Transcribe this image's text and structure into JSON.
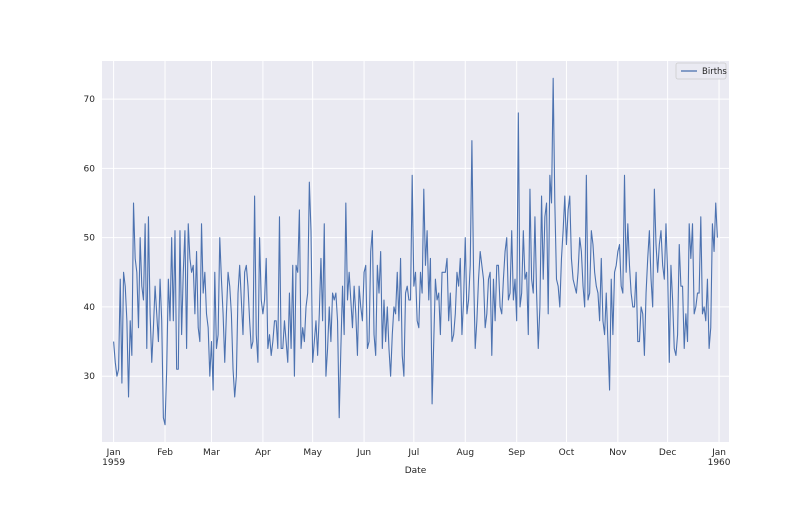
{
  "chart_data": {
    "type": "line",
    "xlabel": "Date",
    "ylabel": "",
    "ylim": [
      20.5,
      75.5
    ],
    "xlim": [
      "1958-12-25",
      "1960-01-07"
    ],
    "grid": true,
    "legend_position": "top-right",
    "yticks": [
      30,
      40,
      50,
      60,
      70
    ],
    "xticks": [
      {
        "date": "1959-01-01",
        "label": "Jan",
        "sublabel": "1959"
      },
      {
        "date": "1959-02-01",
        "label": "Feb",
        "sublabel": ""
      },
      {
        "date": "1959-03-01",
        "label": "Mar",
        "sublabel": ""
      },
      {
        "date": "1959-04-01",
        "label": "Apr",
        "sublabel": ""
      },
      {
        "date": "1959-05-01",
        "label": "May",
        "sublabel": ""
      },
      {
        "date": "1959-06-01",
        "label": "Jun",
        "sublabel": ""
      },
      {
        "date": "1959-07-01",
        "label": "Jul",
        "sublabel": ""
      },
      {
        "date": "1959-08-01",
        "label": "Aug",
        "sublabel": ""
      },
      {
        "date": "1959-09-01",
        "label": "Sep",
        "sublabel": ""
      },
      {
        "date": "1959-10-01",
        "label": "Oct",
        "sublabel": ""
      },
      {
        "date": "1959-11-01",
        "label": "Nov",
        "sublabel": ""
      },
      {
        "date": "1959-12-01",
        "label": "Dec",
        "sublabel": ""
      },
      {
        "date": "1960-01-01",
        "label": "Jan",
        "sublabel": "1960"
      }
    ],
    "series": [
      {
        "name": "Births",
        "color": "#4c72b0",
        "start_date": "1959-01-01",
        "frequency": "daily",
        "values": [
          35,
          32,
          30,
          31,
          44,
          29,
          45,
          43,
          38,
          27,
          38,
          33,
          55,
          47,
          45,
          37,
          50,
          43,
          41,
          52,
          34,
          53,
          39,
          32,
          37,
          43,
          39,
          35,
          44,
          38,
          24,
          23,
          31,
          44,
          38,
          50,
          38,
          51,
          31,
          31,
          51,
          36,
          45,
          51,
          34,
          52,
          47,
          45,
          46,
          39,
          48,
          37,
          35,
          52,
          42,
          45,
          39,
          37,
          30,
          35,
          28,
          45,
          34,
          36,
          50,
          44,
          39,
          32,
          39,
          45,
          43,
          39,
          31,
          27,
          30,
          42,
          46,
          41,
          36,
          45,
          46,
          43,
          38,
          34,
          35,
          56,
          36,
          32,
          50,
          41,
          39,
          41,
          47,
          34,
          36,
          33,
          35,
          38,
          38,
          34,
          53,
          34,
          34,
          38,
          35,
          32,
          42,
          34,
          46,
          30,
          46,
          45,
          54,
          34,
          37,
          35,
          40,
          42,
          58,
          51,
          32,
          35,
          38,
          33,
          39,
          47,
          38,
          52,
          30,
          34,
          40,
          35,
          42,
          41,
          42,
          38,
          24,
          34,
          43,
          36,
          55,
          41,
          45,
          41,
          37,
          43,
          39,
          33,
          43,
          40,
          38,
          45,
          46,
          34,
          35,
          48,
          51,
          36,
          33,
          46,
          42,
          48,
          34,
          41,
          35,
          40,
          34,
          30,
          36,
          40,
          39,
          45,
          38,
          47,
          33,
          30,
          42,
          43,
          41,
          41,
          59,
          43,
          45,
          38,
          37,
          45,
          42,
          57,
          46,
          51,
          41,
          47,
          26,
          35,
          44,
          41,
          42,
          36,
          45,
          45,
          45,
          47,
          38,
          42,
          35,
          36,
          39,
          45,
          43,
          47,
          36,
          41,
          50,
          39,
          41,
          46,
          64,
          45,
          34,
          38,
          44,
          48,
          46,
          44,
          37,
          39,
          44,
          45,
          33,
          44,
          38,
          46,
          46,
          40,
          39,
          44,
          48,
          50,
          41,
          42,
          51,
          41,
          44,
          38,
          68,
          40,
          42,
          51,
          44,
          45,
          36,
          57,
          44,
          42,
          53,
          42,
          34,
          40,
          56,
          44,
          53,
          55,
          39,
          59,
          55,
          73,
          55,
          44,
          43,
          40,
          47,
          51,
          56,
          49,
          54,
          56,
          47,
          44,
          43,
          42,
          45,
          50,
          48,
          43,
          40,
          59,
          41,
          42,
          51,
          49,
          45,
          43,
          42,
          38,
          47,
          38,
          36,
          42,
          35,
          28,
          44,
          36,
          45,
          46,
          48,
          49,
          43,
          42,
          59,
          45,
          52,
          46,
          42,
          40,
          40,
          45,
          35,
          35,
          40,
          39,
          33,
          42,
          47,
          51,
          44,
          40,
          57,
          49,
          45,
          49,
          51,
          46,
          44,
          52,
          45,
          32,
          46,
          41,
          34,
          33,
          36,
          49,
          43,
          43,
          34,
          39,
          35,
          52,
          47,
          52,
          39,
          40,
          42,
          42,
          53,
          39,
          40,
          38,
          44,
          34,
          37,
          52,
          48,
          55,
          50
        ]
      }
    ]
  }
}
